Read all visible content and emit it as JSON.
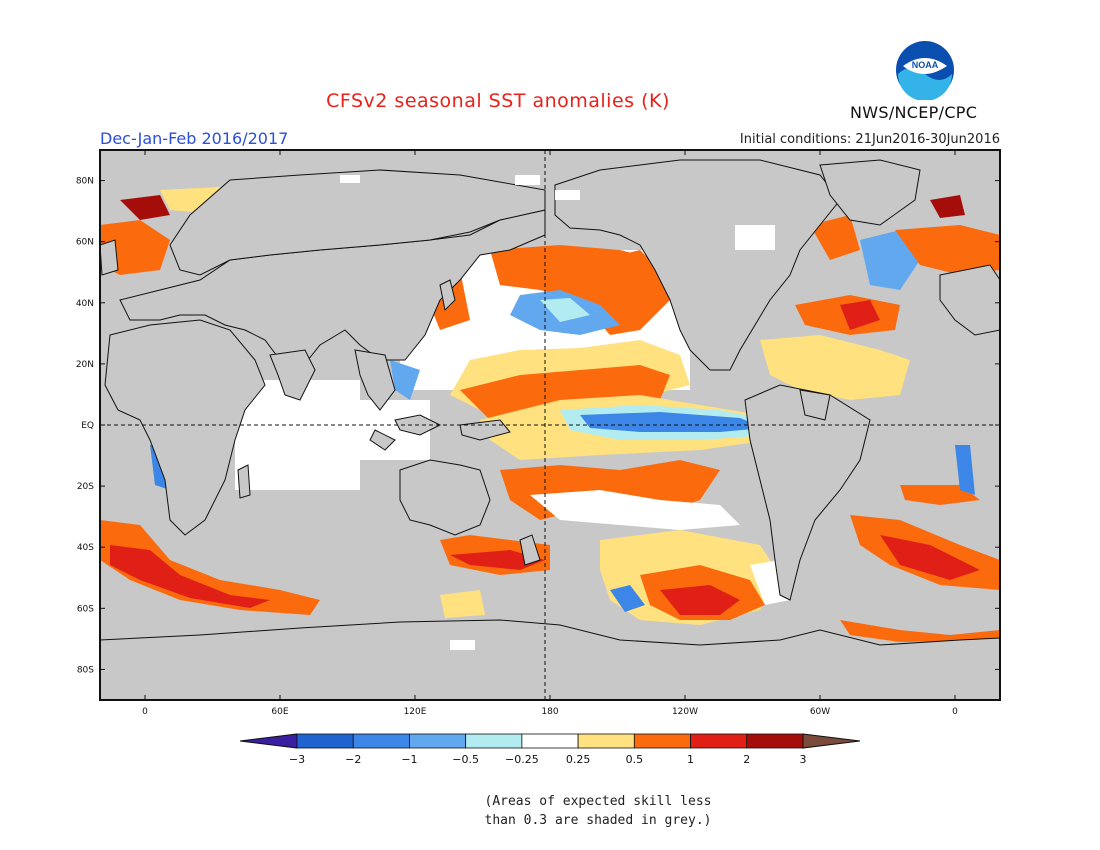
{
  "header": {
    "title": "CFSv2 seasonal SST anomalies (K)",
    "period": "Dec-Jan-Feb 2016/2017",
    "initial_conditions": "Initial conditions: 21Jun2016-30Jun2016",
    "agency": "NWS/NCEP/CPC",
    "logo_text": "NOAA"
  },
  "map": {
    "projection": "equirectangular",
    "lon_range": [
      -20,
      380
    ],
    "lat_range": [
      -90,
      90
    ],
    "lat_labels": [
      "80N",
      "60N",
      "40N",
      "20N",
      "EQ",
      "20S",
      "40S",
      "60S",
      "80S"
    ],
    "lon_labels": [
      "0",
      "60E",
      "120E",
      "180",
      "120W",
      "60W",
      "0"
    ],
    "grey_meaning": "skill < 0.3",
    "dashed_reference_lines": [
      "EQ",
      "180"
    ]
  },
  "colorbar": {
    "labels": [
      "-3",
      "-2",
      "-1",
      "-0.5",
      "-0.25",
      "0.25",
      "0.5",
      "1",
      "2",
      "3"
    ],
    "colors": [
      "#3a1fa3",
      "#1f63d1",
      "#3b86e6",
      "#62a8ef",
      "#b2ecf1",
      "#ffffff",
      "#ffe27f",
      "#fb6b0e",
      "#e02016",
      "#a50d0a",
      "#7a4a3a"
    ]
  },
  "footnote": {
    "line1": "(Areas of expected skill less",
    "line2": "than 0.3 are shaded in grey.)"
  }
}
